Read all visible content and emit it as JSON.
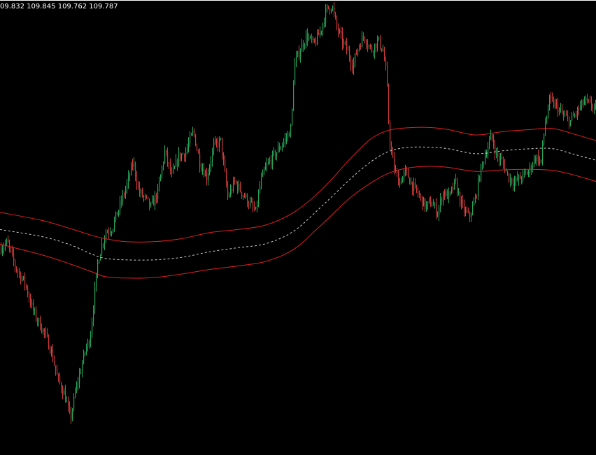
{
  "header": {
    "ohlc_text": "09.832 109.845 109.762 109.787"
  },
  "colors": {
    "background": "#000000",
    "bull": "#26a65b",
    "bear": "#d13b3b",
    "band": "#e02020",
    "mid": "#cfcfcf",
    "text": "#ffffff"
  },
  "chart_data": {
    "type": "candlestick",
    "title": "",
    "xlabel": "",
    "ylabel": "",
    "grid": false,
    "ylim": [
      109.35,
      110.25
    ],
    "price_path": [
      [
        0,
        109.76
      ],
      [
        10,
        109.77
      ],
      [
        22,
        109.72
      ],
      [
        35,
        109.69
      ],
      [
        48,
        109.63
      ],
      [
        60,
        109.6
      ],
      [
        72,
        109.56
      ],
      [
        82,
        109.5
      ],
      [
        92,
        109.47
      ],
      [
        100,
        109.42
      ],
      [
        108,
        109.48
      ],
      [
        115,
        109.52
      ],
      [
        122,
        109.56
      ],
      [
        128,
        109.58
      ],
      [
        134,
        109.66
      ],
      [
        140,
        109.74
      ],
      [
        150,
        109.79
      ],
      [
        160,
        109.8
      ],
      [
        170,
        109.84
      ],
      [
        180,
        109.88
      ],
      [
        190,
        109.93
      ],
      [
        198,
        109.87
      ],
      [
        205,
        109.86
      ],
      [
        215,
        109.84
      ],
      [
        225,
        109.87
      ],
      [
        235,
        109.95
      ],
      [
        245,
        109.9
      ],
      [
        255,
        109.94
      ],
      [
        265,
        109.95
      ],
      [
        276,
        109.99
      ],
      [
        285,
        109.93
      ],
      [
        295,
        109.9
      ],
      [
        305,
        109.96
      ],
      [
        315,
        109.97
      ],
      [
        325,
        109.86
      ],
      [
        335,
        109.89
      ],
      [
        345,
        109.87
      ],
      [
        355,
        109.85
      ],
      [
        365,
        109.83
      ],
      [
        372,
        109.89
      ],
      [
        380,
        109.92
      ],
      [
        390,
        109.94
      ],
      [
        400,
        109.96
      ],
      [
        410,
        109.98
      ],
      [
        416,
        110.0
      ],
      [
        420,
        110.12
      ],
      [
        428,
        110.15
      ],
      [
        438,
        110.18
      ],
      [
        448,
        110.16
      ],
      [
        458,
        110.19
      ],
      [
        466,
        110.23
      ],
      [
        474,
        110.24
      ],
      [
        480,
        110.2
      ],
      [
        488,
        110.17
      ],
      [
        496,
        110.15
      ],
      [
        504,
        110.12
      ],
      [
        512,
        110.16
      ],
      [
        520,
        110.18
      ],
      [
        530,
        110.15
      ],
      [
        540,
        110.17
      ],
      [
        547,
        110.15
      ],
      [
        552,
        110.1
      ],
      [
        556,
        109.98
      ],
      [
        562,
        109.92
      ],
      [
        570,
        109.89
      ],
      [
        580,
        109.91
      ],
      [
        590,
        109.88
      ],
      [
        600,
        109.86
      ],
      [
        608,
        109.84
      ],
      [
        616,
        109.85
      ],
      [
        625,
        109.83
      ],
      [
        633,
        109.87
      ],
      [
        642,
        109.86
      ],
      [
        650,
        109.89
      ],
      [
        660,
        109.84
      ],
      [
        670,
        109.82
      ],
      [
        678,
        109.85
      ],
      [
        686,
        109.91
      ],
      [
        694,
        109.95
      ],
      [
        702,
        109.98
      ],
      [
        710,
        109.94
      ],
      [
        718,
        109.93
      ],
      [
        726,
        109.9
      ],
      [
        735,
        109.89
      ],
      [
        745,
        109.9
      ],
      [
        755,
        109.91
      ],
      [
        765,
        109.94
      ],
      [
        773,
        109.93
      ],
      [
        778,
        110.0
      ],
      [
        785,
        110.05
      ],
      [
        795,
        110.04
      ],
      [
        805,
        110.02
      ],
      [
        815,
        110.01
      ],
      [
        825,
        110.03
      ],
      [
        835,
        110.05
      ],
      [
        845,
        110.04
      ],
      [
        852,
        110.04
      ]
    ],
    "series": [
      {
        "kind": "band-upper",
        "points": [
          [
            0,
            109.83
          ],
          [
            60,
            109.814
          ],
          [
            100,
            109.798
          ],
          [
            130,
            109.785
          ],
          [
            150,
            109.778
          ],
          [
            180,
            109.772
          ],
          [
            220,
            109.772
          ],
          [
            260,
            109.778
          ],
          [
            300,
            109.79
          ],
          [
            340,
            109.796
          ],
          [
            380,
            109.805
          ],
          [
            420,
            109.83
          ],
          [
            460,
            109.875
          ],
          [
            500,
            109.935
          ],
          [
            530,
            109.975
          ],
          [
            555,
            109.992
          ],
          [
            580,
            109.997
          ],
          [
            610,
            109.998
          ],
          [
            640,
            109.994
          ],
          [
            680,
            109.983
          ],
          [
            720,
            109.99
          ],
          [
            760,
            109.994
          ],
          [
            790,
            109.996
          ],
          [
            820,
            109.985
          ],
          [
            852,
            109.972
          ]
        ]
      },
      {
        "kind": "band-middle",
        "points": [
          [
            0,
            109.796
          ],
          [
            60,
            109.782
          ],
          [
            100,
            109.766
          ],
          [
            130,
            109.748
          ],
          [
            150,
            109.739
          ],
          [
            180,
            109.736
          ],
          [
            220,
            109.736
          ],
          [
            260,
            109.741
          ],
          [
            300,
            109.752
          ],
          [
            340,
            109.76
          ],
          [
            380,
            109.768
          ],
          [
            420,
            109.793
          ],
          [
            460,
            109.842
          ],
          [
            500,
            109.895
          ],
          [
            530,
            109.93
          ],
          [
            555,
            109.95
          ],
          [
            580,
            109.958
          ],
          [
            610,
            109.959
          ],
          [
            640,
            109.956
          ],
          [
            680,
            109.946
          ],
          [
            720,
            109.952
          ],
          [
            760,
            109.956
          ],
          [
            790,
            109.956
          ],
          [
            820,
            109.945
          ],
          [
            852,
            109.933
          ]
        ]
      },
      {
        "kind": "band-lower",
        "points": [
          [
            0,
            109.767
          ],
          [
            60,
            109.746
          ],
          [
            100,
            109.728
          ],
          [
            130,
            109.713
          ],
          [
            150,
            109.703
          ],
          [
            180,
            109.7
          ],
          [
            220,
            109.701
          ],
          [
            260,
            109.708
          ],
          [
            300,
            109.717
          ],
          [
            340,
            109.724
          ],
          [
            380,
            109.733
          ],
          [
            420,
            109.757
          ],
          [
            460,
            109.806
          ],
          [
            500,
            109.858
          ],
          [
            530,
            109.888
          ],
          [
            555,
            109.907
          ],
          [
            580,
            109.917
          ],
          [
            610,
            109.921
          ],
          [
            640,
            109.919
          ],
          [
            680,
            109.911
          ],
          [
            720,
            109.914
          ],
          [
            760,
            109.915
          ],
          [
            790,
            109.913
          ],
          [
            820,
            109.904
          ],
          [
            852,
            109.891
          ]
        ]
      }
    ]
  }
}
